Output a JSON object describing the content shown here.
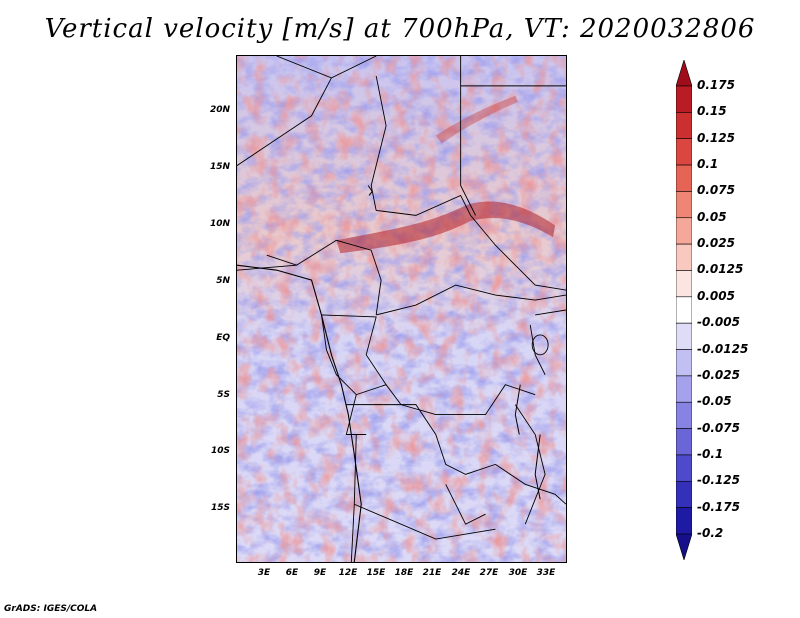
{
  "title": "Vertical velocity [m/s] at 700hPa, VT: 2020032806",
  "footer": "GrADS: IGES/COLA",
  "lat_labels": [
    "20N",
    "15N",
    "10N",
    "5N",
    "EQ",
    "5S",
    "10S",
    "15S"
  ],
  "lon_labels": [
    "3E",
    "6E",
    "9E",
    "12E",
    "15E",
    "18E",
    "21E",
    "24E",
    "27E",
    "30E",
    "33E"
  ],
  "colorbar": {
    "labels": [
      "0.175",
      "0.15",
      "0.125",
      "0.1",
      "0.075",
      "0.05",
      "0.025",
      "0.0125",
      "0.005",
      "-0.005",
      "-0.0125",
      "-0.025",
      "-0.05",
      "-0.075",
      "-0.1",
      "-0.125",
      "-0.175",
      "-0.2"
    ],
    "colors": [
      "#a00d1a",
      "#b91c24",
      "#cc2f30",
      "#dc4640",
      "#e66456",
      "#ef8675",
      "#f5a799",
      "#f9c8bf",
      "#fce5e0",
      "#ffffff",
      "#dedcf7",
      "#c2bff2",
      "#a5a1ec",
      "#8783e3",
      "#6a66d8",
      "#4e4acb",
      "#3430b9",
      "#1f1aa3",
      "#150f8c"
    ]
  },
  "colors": {
    "positive": "#d23a3a",
    "negative": "#5a5ad8",
    "border": "#000000"
  }
}
